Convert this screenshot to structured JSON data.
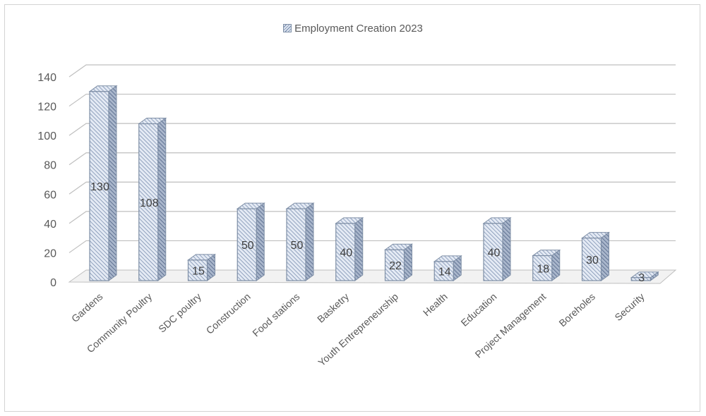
{
  "chart_data": {
    "type": "bar",
    "style": "3d-clustered-column",
    "legend": {
      "position": "top",
      "entries": [
        "Employment Creation 2023"
      ]
    },
    "categories": [
      "Gardens",
      "Community Poultry",
      "SDC poultry",
      "Construction",
      "Food stations",
      "Basketry",
      "Youth Entrepreneurship",
      "Health",
      "Education",
      "Project Management",
      "Boreholes",
      "Security"
    ],
    "series": [
      {
        "name": "Employment Creation 2023",
        "values": [
          130,
          108,
          15,
          50,
          50,
          40,
          22,
          14,
          40,
          18,
          30,
          3
        ]
      }
    ],
    "data_labels": [
      "130",
      "108",
      "15",
      "50",
      "50",
      "40",
      "22",
      "14",
      "40",
      "18",
      "30",
      "3"
    ],
    "y_ticks": [
      "0",
      "20",
      "40",
      "60",
      "80",
      "100",
      "120",
      "140"
    ],
    "ylim": [
      0,
      140
    ],
    "grid": true,
    "colors": {
      "bar_fill": "#e4eaf4",
      "bar_hatch": "#6f85a8",
      "bar_edge": "#7f8fa6",
      "gridline": "#bfbfbf",
      "text": "#595959"
    }
  }
}
